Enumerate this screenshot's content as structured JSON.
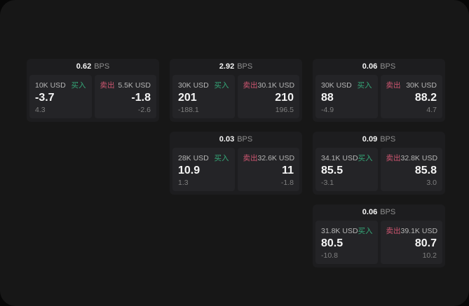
{
  "page": {
    "bps_unit": "BPS",
    "colors": {
      "backdrop": "#070707",
      "surface": "#171717",
      "card": "#1d1d1f",
      "panel": "#242427",
      "text_primary": "#f5f5f5",
      "text_secondary": "#b6b6b6",
      "text_dim": "#7f7f7f",
      "bps_unit": "#8f8f8f",
      "buy_green": "#35a878",
      "sell_red": "#d05671"
    }
  },
  "cards": [
    {
      "col": 1,
      "row": 1,
      "bps": "0.62",
      "buy": {
        "amount": "10K USD",
        "side_label": "买入",
        "value": "-3.7",
        "sub_value": "4.3"
      },
      "sell": {
        "amount": "5.5K USD",
        "side_label": "卖出",
        "value": "-1.8",
        "sub_value": "-2.6"
      }
    },
    {
      "col": 2,
      "row": 1,
      "bps": "2.92",
      "buy": {
        "amount": "30K USD",
        "side_label": "买入",
        "value": "201",
        "sub_value": "-188.1"
      },
      "sell": {
        "amount": "30.1K USD",
        "side_label": "卖出",
        "value": "210",
        "sub_value": "196.5"
      }
    },
    {
      "col": 3,
      "row": 1,
      "bps": "0.06",
      "buy": {
        "amount": "30K USD",
        "side_label": "买入",
        "value": "88",
        "sub_value": "-4.9"
      },
      "sell": {
        "amount": "30K USD",
        "side_label": "卖出",
        "value": "88.2",
        "sub_value": "4.7"
      }
    },
    {
      "col": 2,
      "row": 2,
      "bps": "0.03",
      "buy": {
        "amount": "28K USD",
        "side_label": "买入",
        "value": "10.9",
        "sub_value": "1.3"
      },
      "sell": {
        "amount": "32.6K USD",
        "side_label": "卖出",
        "value": "11",
        "sub_value": "-1.8"
      }
    },
    {
      "col": 3,
      "row": 2,
      "bps": "0.09",
      "buy": {
        "amount": "34.1K USD",
        "side_label": "买入",
        "value": "85.5",
        "sub_value": "-3.1"
      },
      "sell": {
        "amount": "32.8K USD",
        "side_label": "卖出",
        "value": "85.8",
        "sub_value": "3.0"
      }
    },
    {
      "col": 3,
      "row": 3,
      "bps": "0.06",
      "buy": {
        "amount": "31.8K USD",
        "side_label": "买入",
        "value": "80.5",
        "sub_value": "-10.8"
      },
      "sell": {
        "amount": "39.1K USD",
        "side_label": "卖出",
        "value": "80.7",
        "sub_value": "10.2"
      }
    }
  ]
}
